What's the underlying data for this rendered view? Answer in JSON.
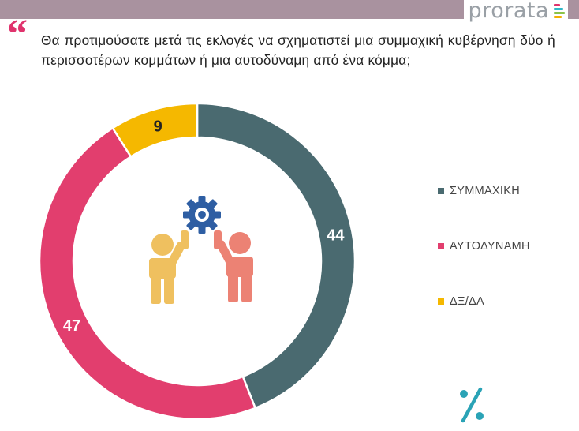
{
  "header": {
    "brand": "prorata",
    "brand_bar_colors": [
      "#e0336d",
      "#2fb8c8",
      "#8bc34a",
      "#f3b000"
    ]
  },
  "question": {
    "text": "Θα προτιμούσατε μετά τις εκλογές να σχηματιστεί μια συμμαχική κυβέρνηση δύο ή περισσοτέρων κομμάτων ή μια αυτοδύναμη από ένα κόμμα;"
  },
  "chart_data": {
    "type": "pie",
    "donut": true,
    "labels": [
      "ΣΥΜΜΑΧΙΚΗ",
      "ΑΥΤΟΔΥΝΑΜΗ",
      "ΔΞ/ΔΑ"
    ],
    "values": [
      44,
      47,
      9
    ],
    "colors": [
      "#4a6a70",
      "#e23e6e",
      "#f5b800"
    ],
    "start": "top, clockwise",
    "legend_position": "right",
    "unit_symbol": "%"
  },
  "illustration": {
    "gear_color": "#2e5ea3",
    "person_left_color": "#efc05f",
    "person_right_color": "#ec8274"
  },
  "percent_icon": {
    "color": "#2aa3b6"
  }
}
